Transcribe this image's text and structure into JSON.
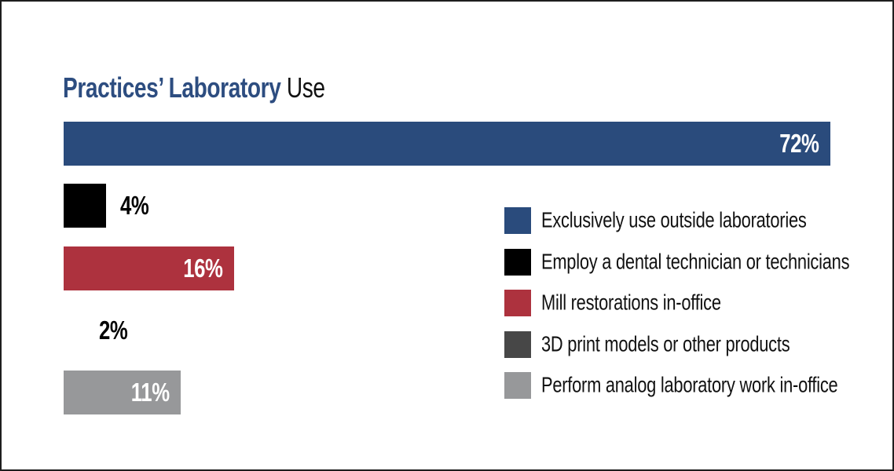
{
  "title": {
    "emphasis": "Practices’ Laboratory",
    "rest": " Use"
  },
  "colors": {
    "title_navy": "#2d4d80",
    "frame_border": "#1d1d1d",
    "inside_label": "#ffffff",
    "outside_label": "#000000"
  },
  "chart_data": {
    "type": "bar",
    "orientation": "horizontal",
    "title": "Practices’ Laboratory Use",
    "categories": [
      "Exclusively use outside laboratories",
      "Employ a dental technician or technicians",
      "Mill restorations in-office",
      "3D print models or other products",
      "Perform analog laboratory work in-office"
    ],
    "values": [
      72,
      4,
      16,
      2,
      11
    ],
    "value_labels": [
      "72%",
      "4%",
      "16%",
      "2%",
      "11%"
    ],
    "colors": [
      "#2a4b7c",
      "#000000",
      "#ad323e",
      "#474747",
      "#97989a"
    ],
    "label_placement": [
      "inside",
      "outside",
      "inside",
      "outside",
      "inside"
    ],
    "bar_visible": [
      true,
      true,
      true,
      false,
      true
    ],
    "xlim": [
      0,
      74
    ],
    "grid": false,
    "axes_shown": false,
    "legend_position": "middle-right"
  },
  "legend": {
    "items": [
      {
        "label": "Exclusively use outside laboratories",
        "color": "#2a4b7c"
      },
      {
        "label": "Employ a dental technician or technicians",
        "color": "#000000"
      },
      {
        "label": "Mill restorations in-office",
        "color": "#ad323e"
      },
      {
        "label": "3D print models or other products",
        "color": "#474747"
      },
      {
        "label": "Perform analog laboratory work in-office",
        "color": "#97989a"
      }
    ]
  }
}
